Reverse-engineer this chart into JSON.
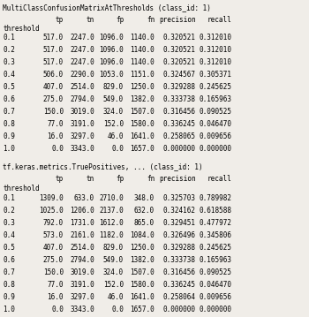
{
  "title1": "MultiClassConfusionMatrixAtThresholds (class_id: 1)",
  "title2": "tf.keras.metrics.TruePositives, ... (class_id: 1)",
  "columns": [
    "tp",
    "tn",
    "fp",
    "fn",
    "precision",
    "recall"
  ],
  "index_label": "threshold",
  "table1": {
    "0.1": [
      517.0,
      2247.0,
      1096.0,
      1140.0,
      0.320521,
      0.31201
    ],
    "0.2": [
      517.0,
      2247.0,
      1096.0,
      1140.0,
      0.320521,
      0.31201
    ],
    "0.3": [
      517.0,
      2247.0,
      1096.0,
      1140.0,
      0.320521,
      0.31201
    ],
    "0.4": [
      506.0,
      2290.0,
      1053.0,
      1151.0,
      0.324567,
      0.305371
    ],
    "0.5": [
      407.0,
      2514.0,
      829.0,
      1250.0,
      0.329288,
      0.245625
    ],
    "0.6": [
      275.0,
      2794.0,
      549.0,
      1382.0,
      0.333738,
      0.165963
    ],
    "0.7": [
      150.0,
      3019.0,
      324.0,
      1507.0,
      0.316456,
      0.090525
    ],
    "0.8": [
      77.0,
      3191.0,
      152.0,
      1580.0,
      0.336245,
      0.04647
    ],
    "0.9": [
      16.0,
      3297.0,
      46.0,
      1641.0,
      0.258065,
      0.009656
    ],
    "1.0": [
      0.0,
      3343.0,
      0.0,
      1657.0,
      0.0,
      0.0
    ]
  },
  "table2": {
    "0.1": [
      1309.0,
      633.0,
      2710.0,
      348.0,
      0.325703,
      0.789982
    ],
    "0.2": [
      1025.0,
      1206.0,
      2137.0,
      632.0,
      0.324162,
      0.618588
    ],
    "0.3": [
      792.0,
      1731.0,
      1612.0,
      865.0,
      0.329451,
      0.477972
    ],
    "0.4": [
      573.0,
      2161.0,
      1182.0,
      1084.0,
      0.326496,
      0.345806
    ],
    "0.5": [
      407.0,
      2514.0,
      829.0,
      1250.0,
      0.329288,
      0.245625
    ],
    "0.6": [
      275.0,
      2794.0,
      549.0,
      1382.0,
      0.333738,
      0.165963
    ],
    "0.7": [
      150.0,
      3019.0,
      324.0,
      1507.0,
      0.316456,
      0.090525
    ],
    "0.8": [
      77.0,
      3191.0,
      152.0,
      1580.0,
      0.336245,
      0.04647
    ],
    "0.9": [
      16.0,
      3297.0,
      46.0,
      1641.0,
      0.258064,
      0.009656
    ],
    "1.0": [
      0.0,
      3343.0,
      0.0,
      1657.0,
      0.0,
      0.0
    ]
  },
  "bg_color": "#f0ede8",
  "font_size": 5.5,
  "title_font_size": 5.5,
  "fig_width": 3.5,
  "fig_height": 3.59,
  "dpi": 100,
  "thresholds": [
    "0.1",
    "0.2",
    "0.3",
    "0.4",
    "0.5",
    "0.6",
    "0.7",
    "0.8",
    "0.9",
    "1.0"
  ]
}
